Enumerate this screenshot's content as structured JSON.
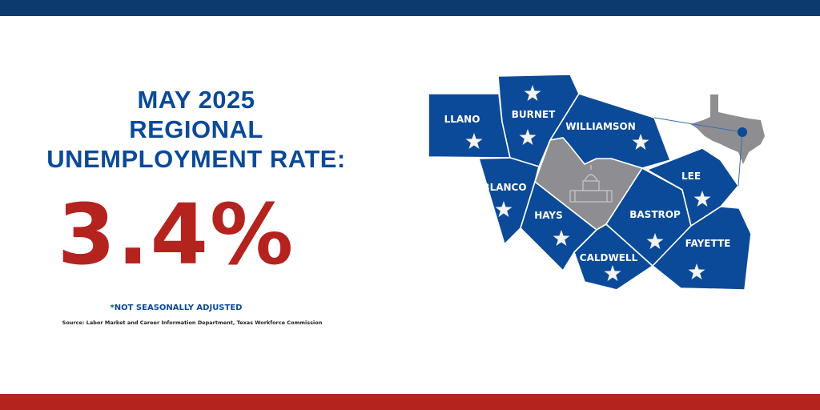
{
  "header": {
    "title_lines": [
      "MAY 2025",
      "REGIONAL",
      "UNEMPLOYMENT RATE:"
    ]
  },
  "rate": "3.4%",
  "note": "*NOT SEASONALLY ADJUSTED",
  "source": "Source: Labor Market and Career Information Department, Texas Workforce Commission",
  "map": {
    "counties": [
      "LLANO",
      "BURNET",
      "WILLIAMSON",
      "BLANCO",
      "HAYS",
      "BASTROP",
      "LEE",
      "CALDWELL",
      "FAYETTE"
    ],
    "center_county_icon": "capitol-building-icon",
    "inset": "texas-state-locator"
  },
  "colors": {
    "blue": "#0b4a98",
    "red": "#b5231f",
    "navy": "#0c3a6d",
    "gray": "#8e8e92"
  }
}
